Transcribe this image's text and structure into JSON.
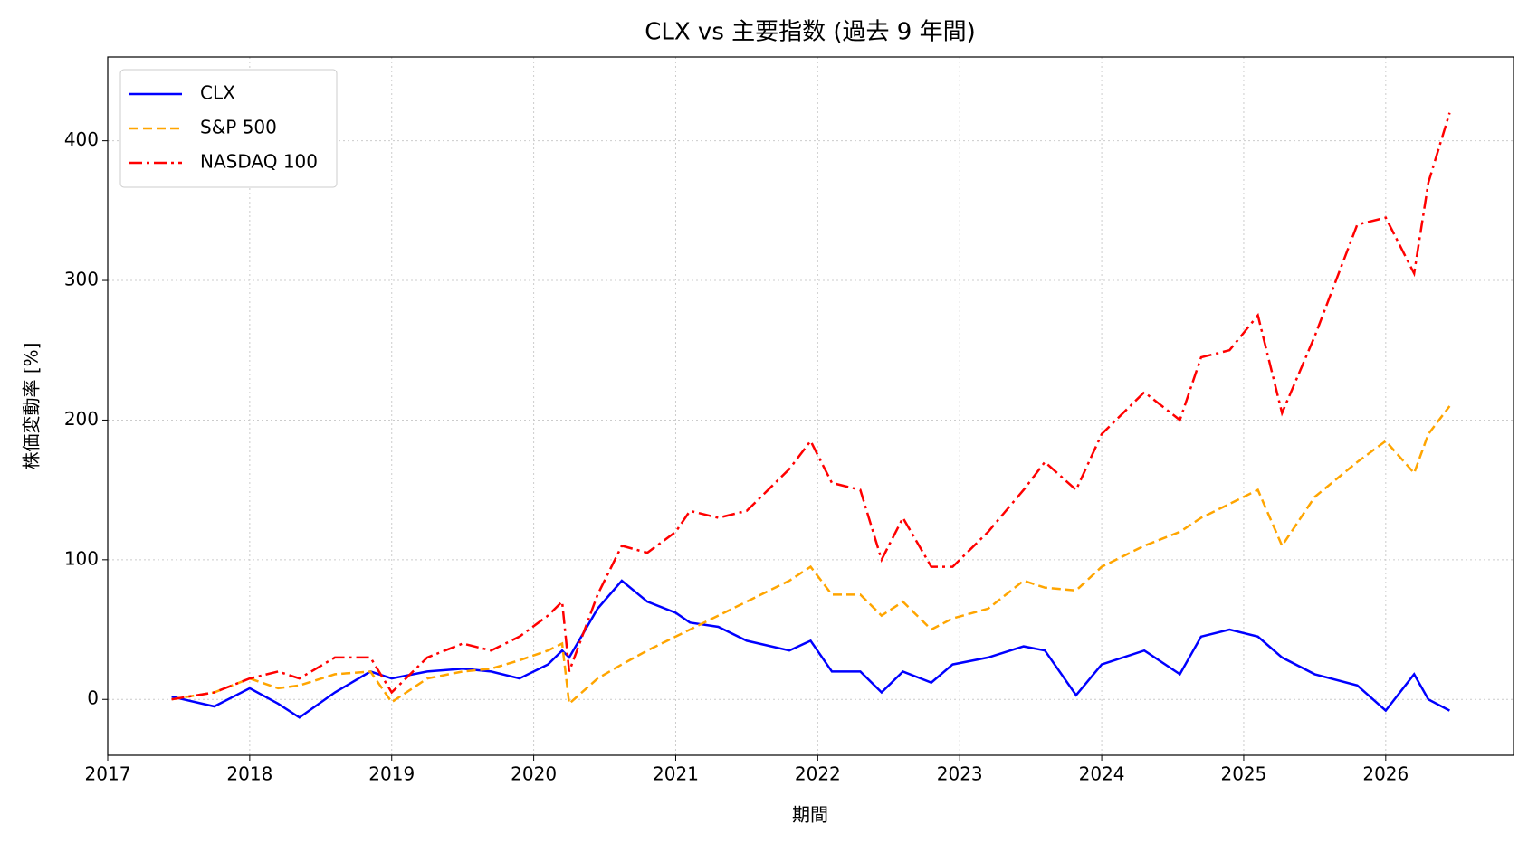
{
  "chart_data": {
    "type": "line",
    "title": "CLX vs 主要指数 (過去 9 年間)",
    "x_label": "期間",
    "y_label": "株価変動率 [%]",
    "x": [
      2017.45,
      2017.75,
      2018.0,
      2018.2,
      2018.35,
      2018.6,
      2018.85,
      2019.0,
      2019.25,
      2019.5,
      2019.7,
      2019.9,
      2020.1,
      2020.2,
      2020.25,
      2020.45,
      2020.62,
      2020.8,
      2021.0,
      2021.1,
      2021.3,
      2021.5,
      2021.8,
      2021.95,
      2022.1,
      2022.3,
      2022.45,
      2022.6,
      2022.8,
      2022.95,
      2023.2,
      2023.45,
      2023.6,
      2023.82,
      2024.0,
      2024.3,
      2024.55,
      2024.7,
      2024.9,
      2025.1,
      2025.27,
      2025.5,
      2025.8,
      2026.0,
      2026.2,
      2026.3,
      2026.45
    ],
    "series": [
      {
        "name": "CLX",
        "color": "#0000ff",
        "dash": "solid",
        "values": [
          2,
          -5,
          8,
          -3,
          -13,
          5,
          20,
          15,
          20,
          22,
          20,
          15,
          25,
          35,
          30,
          65,
          85,
          70,
          62,
          55,
          52,
          42,
          35,
          42,
          20,
          20,
          5,
          20,
          12,
          25,
          30,
          38,
          35,
          3,
          25,
          35,
          18,
          45,
          50,
          45,
          30,
          18,
          10,
          -8,
          18,
          0,
          -8
        ]
      },
      {
        "name": "S&P 500",
        "color": "#ffa500",
        "dash": "dashed",
        "values": [
          0,
          5,
          15,
          8,
          10,
          18,
          20,
          -2,
          15,
          20,
          22,
          28,
          35,
          40,
          -3,
          15,
          25,
          35,
          45,
          50,
          60,
          70,
          85,
          95,
          75,
          75,
          60,
          70,
          50,
          58,
          65,
          85,
          80,
          78,
          95,
          110,
          120,
          130,
          140,
          150,
          110,
          145,
          170,
          185,
          162,
          190,
          210
        ]
      },
      {
        "name": "NASDAQ 100",
        "color": "#ff0000",
        "dash": "dashdot",
        "values": [
          0,
          5,
          15,
          20,
          15,
          30,
          30,
          5,
          30,
          40,
          35,
          45,
          60,
          70,
          20,
          75,
          110,
          105,
          120,
          135,
          130,
          135,
          165,
          185,
          155,
          150,
          100,
          130,
          95,
          95,
          120,
          150,
          170,
          150,
          190,
          220,
          200,
          245,
          250,
          275,
          205,
          260,
          340,
          345,
          305,
          370,
          420
        ]
      }
    ],
    "xlim": [
      2017,
      2026.9
    ],
    "xticks": [
      2017,
      2018,
      2019,
      2020,
      2021,
      2022,
      2023,
      2024,
      2025,
      2026
    ],
    "ylim": [
      -40,
      460
    ],
    "yticks": [
      0,
      100,
      200,
      300,
      400
    ],
    "grid": true,
    "legend": "upper left"
  }
}
